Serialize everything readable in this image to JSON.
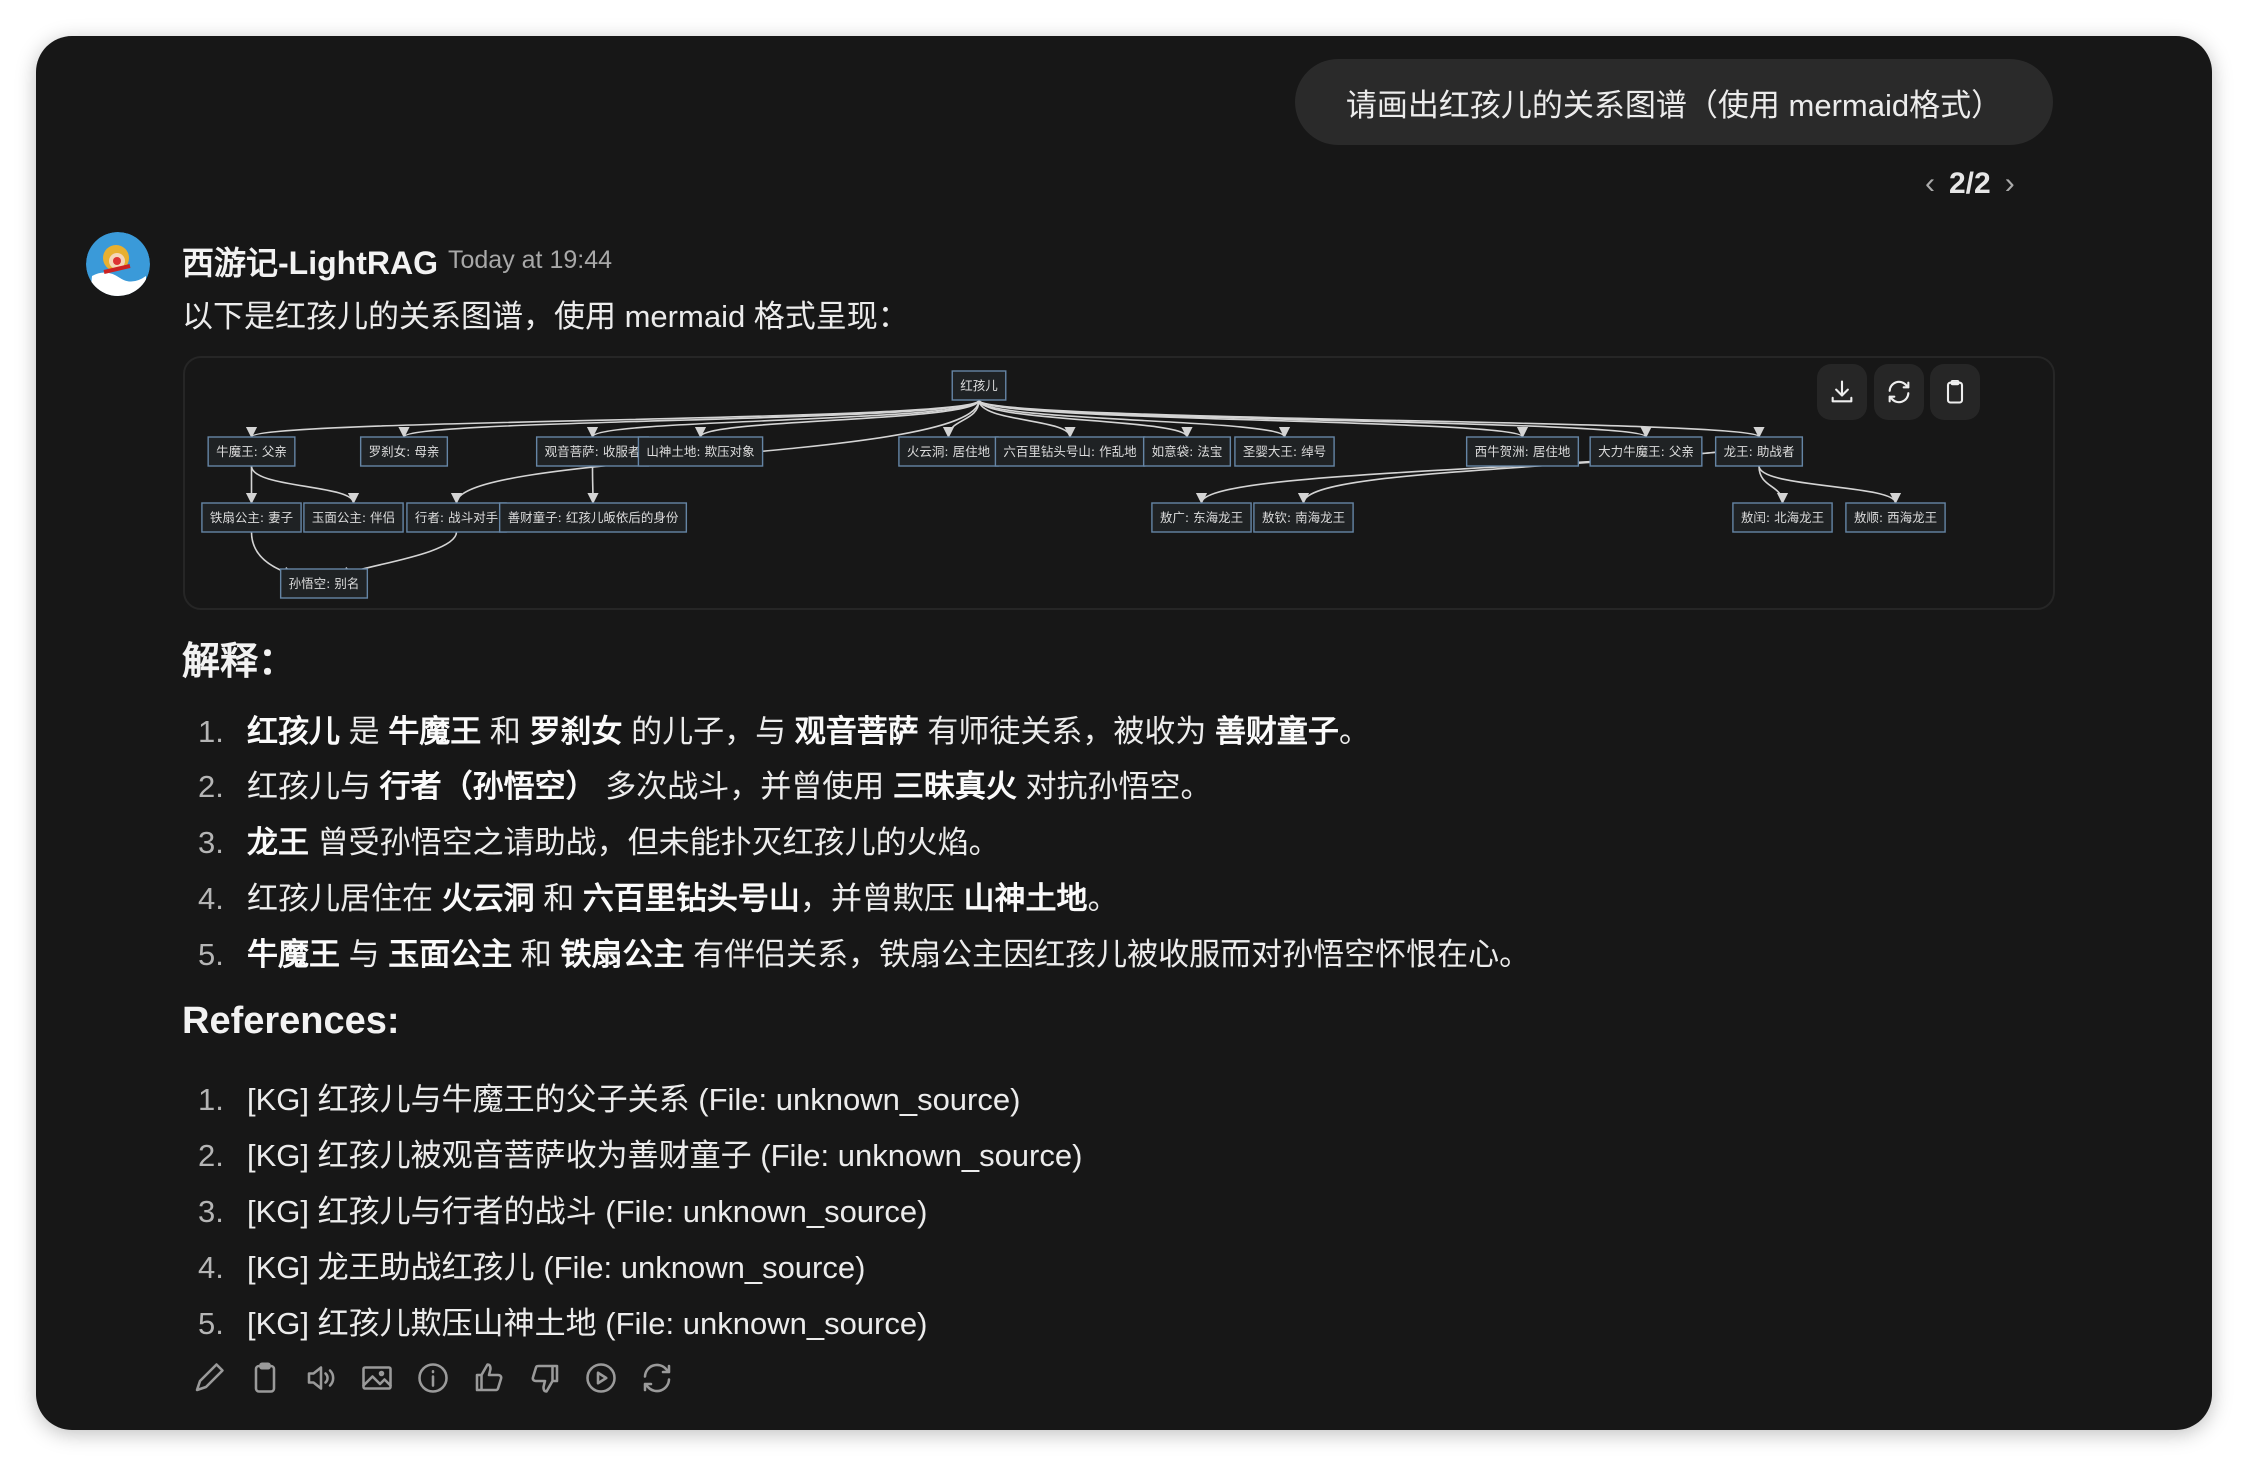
{
  "user_message": "请画出红孩儿的关系图谱（使用 mermaid格式）",
  "pager": {
    "label": "2/2",
    "prev_icon": "chevron-left-icon",
    "next_icon": "chevron-right-icon"
  },
  "assistant": {
    "name": "西游记-LightRAG",
    "timestamp": "Today at 19:44",
    "intro": "以下是红孩儿的关系图谱，使用 mermaid 格式呈现："
  },
  "diagram": {
    "buttons": [
      {
        "name": "download",
        "icon": "download-icon"
      },
      {
        "name": "refresh",
        "icon": "refresh-icon"
      },
      {
        "name": "copy",
        "icon": "clipboard-icon"
      }
    ],
    "nodes": [
      {
        "id": "root",
        "label": "红孩儿"
      },
      {
        "id": "nmw",
        "label": "牛魔王: 父亲"
      },
      {
        "id": "lcn",
        "label": "罗刹女: 母亲"
      },
      {
        "id": "gy",
        "label": "观音菩萨: 收服者"
      },
      {
        "id": "ss",
        "label": "山神土地: 欺压对象"
      },
      {
        "id": "hyd",
        "label": "火云洞: 居住地"
      },
      {
        "id": "lbl",
        "label": "六百里钻头号山: 作乱地"
      },
      {
        "id": "ryd",
        "label": "如意袋: 法宝"
      },
      {
        "id": "sy",
        "label": "圣婴大王: 绰号"
      },
      {
        "id": "xn",
        "label": "西牛贺洲: 居住地"
      },
      {
        "id": "dl",
        "label": "大力牛魔王: 父亲"
      },
      {
        "id": "lw",
        "label": "龙王: 助战者"
      },
      {
        "id": "tsgz",
        "label": "铁扇公主: 妻子"
      },
      {
        "id": "ymgz",
        "label": "玉面公主: 伴侣"
      },
      {
        "id": "xz",
        "label": "行者: 战斗对手"
      },
      {
        "id": "sc",
        "label": "善财童子: 红孩儿皈依后的身份"
      },
      {
        "id": "ag",
        "label": "敖广: 东海龙王"
      },
      {
        "id": "aq",
        "label": "敖钦: 南海龙王"
      },
      {
        "id": "ar",
        "label": "敖闰: 北海龙王"
      },
      {
        "id": "as",
        "label": "敖顺: 西海龙王"
      },
      {
        "id": "swk",
        "label": "孙悟空: 别名"
      }
    ],
    "edges": [
      [
        "root",
        "nmw"
      ],
      [
        "root",
        "lcn"
      ],
      [
        "root",
        "xz"
      ],
      [
        "root",
        "gy"
      ],
      [
        "root",
        "ss"
      ],
      [
        "root",
        "hyd"
      ],
      [
        "root",
        "lbl"
      ],
      [
        "root",
        "ryd"
      ],
      [
        "root",
        "sy"
      ],
      [
        "root",
        "xn"
      ],
      [
        "root",
        "dl"
      ],
      [
        "root",
        "lw"
      ],
      [
        "nmw",
        "tsgz"
      ],
      [
        "nmw",
        "ymgz"
      ],
      [
        "gy",
        "sc"
      ],
      [
        "tsgz",
        "swk"
      ],
      [
        "xz",
        "swk"
      ],
      [
        "lw",
        "ag"
      ],
      [
        "lw",
        "aq"
      ],
      [
        "lw",
        "ar"
      ],
      [
        "lw",
        "as"
      ]
    ]
  },
  "explanation": {
    "heading": "解释：",
    "items": [
      {
        "num": "1.",
        "segments": [
          {
            "t": "红孩儿",
            "b": true
          },
          {
            "t": " 是 "
          },
          {
            "t": "牛魔王",
            "b": true
          },
          {
            "t": " 和 "
          },
          {
            "t": "罗刹女",
            "b": true
          },
          {
            "t": " 的儿子，与 "
          },
          {
            "t": "观音菩萨",
            "b": true
          },
          {
            "t": " 有师徒关系，被收为 "
          },
          {
            "t": "善财童子",
            "b": true
          },
          {
            "t": "。"
          }
        ]
      },
      {
        "num": "2.",
        "segments": [
          {
            "t": "红孩儿与 "
          },
          {
            "t": "行者（孙悟空）",
            "b": true
          },
          {
            "t": " 多次战斗，并曾使用 "
          },
          {
            "t": "三昧真火",
            "b": true
          },
          {
            "t": " 对抗孙悟空。"
          }
        ]
      },
      {
        "num": "3.",
        "segments": [
          {
            "t": "龙王",
            "b": true
          },
          {
            "t": " 曾受孙悟空之请助战，但未能扑灭红孩儿的火焰。"
          }
        ]
      },
      {
        "num": "4.",
        "segments": [
          {
            "t": "红孩儿居住在 "
          },
          {
            "t": "火云洞",
            "b": true
          },
          {
            "t": " 和 "
          },
          {
            "t": "六百里钻头号山",
            "b": true
          },
          {
            "t": "，并曾欺压 "
          },
          {
            "t": "山神土地",
            "b": true
          },
          {
            "t": "。"
          }
        ]
      },
      {
        "num": "5.",
        "segments": [
          {
            "t": "牛魔王",
            "b": true
          },
          {
            "t": " 与 "
          },
          {
            "t": "玉面公主",
            "b": true
          },
          {
            "t": " 和 "
          },
          {
            "t": "铁扇公主",
            "b": true
          },
          {
            "t": " 有伴侣关系，铁扇公主因红孩儿被收服而对孙悟空怀恨在心。"
          }
        ]
      }
    ]
  },
  "references": {
    "heading": "References:",
    "items": [
      {
        "num": "1.",
        "text": "[KG] 红孩儿与牛魔王的父子关系 (File: unknown_source)"
      },
      {
        "num": "2.",
        "text": "[KG] 红孩儿被观音菩萨收为善财童子 (File: unknown_source)"
      },
      {
        "num": "3.",
        "text": "[KG] 红孩儿与行者的战斗 (File: unknown_source)"
      },
      {
        "num": "4.",
        "text": "[KG] 龙王助战红孩儿 (File: unknown_source)"
      },
      {
        "num": "5.",
        "text": "[KG] 红孩儿欺压山神土地 (File: unknown_source)"
      }
    ]
  },
  "actions": [
    "edit-icon",
    "copy-icon",
    "read-aloud-icon",
    "image-icon",
    "info-icon",
    "thumbs-up-icon",
    "thumbs-down-icon",
    "play-icon",
    "regenerate-icon"
  ],
  "colors": {
    "background": "#171717",
    "bubble": "#2a2a2a",
    "node_border": "#6585a5",
    "muted": "#a8a8a8"
  }
}
